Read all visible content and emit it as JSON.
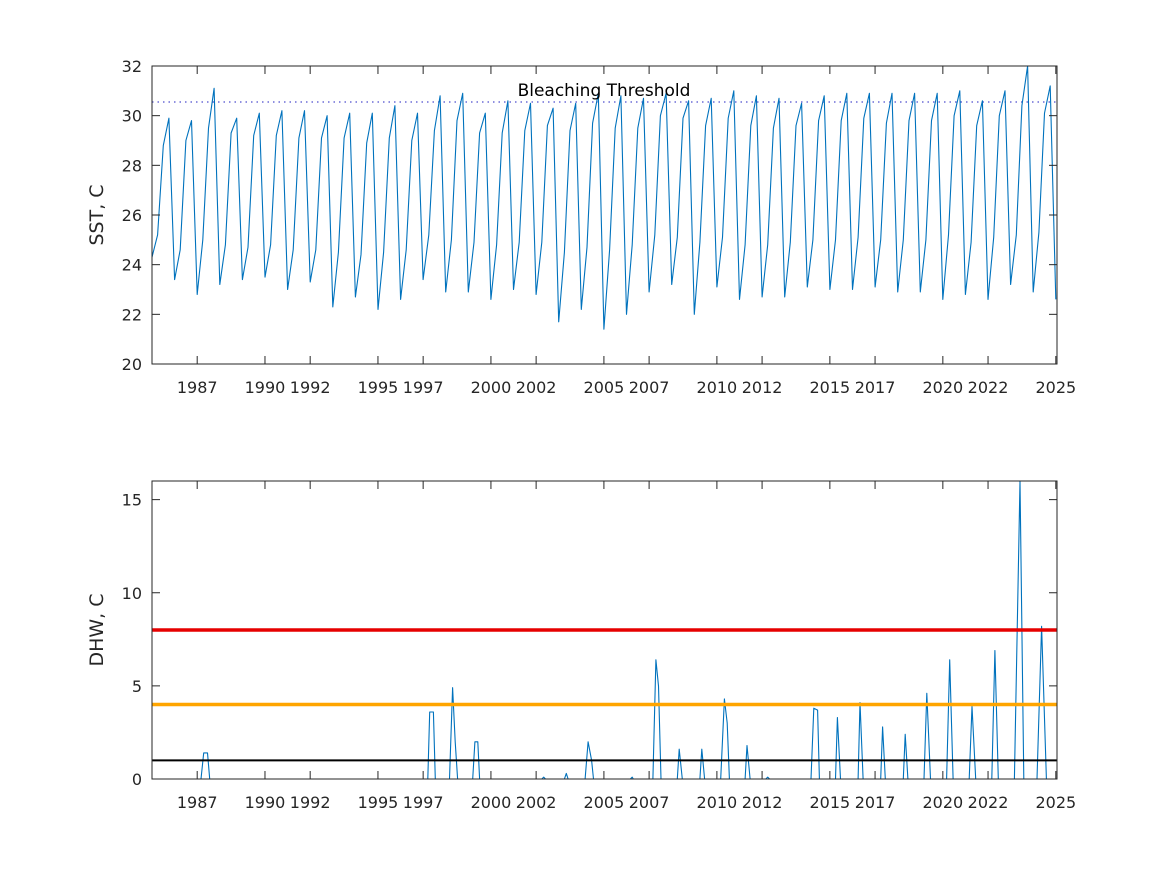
{
  "colors": {
    "series": "#0072BD",
    "threshold_dotted": "#6b6bd6",
    "dhw_red": "#e60000",
    "dhw_orange": "#ffa500",
    "dhw_black": "#000000",
    "axis": "#262626"
  },
  "x_tick_labels": [
    "1987",
    "1990",
    "1992",
    "1995",
    "1997",
    "2000",
    "2002",
    "2005",
    "2007",
    "2010",
    "2012",
    "2015",
    "2017",
    "2020",
    "2022",
    "2025"
  ],
  "chart_data": [
    {
      "type": "line",
      "title": "",
      "xlabel": "",
      "ylabel": "SST, C",
      "xlim": [
        "1985-01-01",
        "2025-01-20"
      ],
      "ylim": [
        20,
        32
      ],
      "yticks": [
        20,
        22,
        24,
        26,
        28,
        30,
        32
      ],
      "grid": false,
      "annotations": [
        {
          "text": "Bleaching Threshold",
          "y": 30.55,
          "style": "dotted"
        }
      ],
      "series": [
        {
          "x": [
            "1985-01",
            "1985-04",
            "1985-07",
            "1985-10",
            "1986-01",
            "1986-04",
            "1986-07",
            "1986-10",
            "1987-01",
            "1987-04",
            "1987-07",
            "1987-10",
            "1988-01",
            "1988-04",
            "1988-07",
            "1988-10",
            "1989-01",
            "1989-04",
            "1989-07",
            "1989-10",
            "1990-01",
            "1990-04",
            "1990-07",
            "1990-10",
            "1991-01",
            "1991-04",
            "1991-07",
            "1991-10",
            "1992-01",
            "1992-04",
            "1992-07",
            "1992-10",
            "1993-01",
            "1993-04",
            "1993-07",
            "1993-10",
            "1994-01",
            "1994-04",
            "1994-07",
            "1994-10",
            "1995-01",
            "1995-04",
            "1995-07",
            "1995-10",
            "1996-01",
            "1996-04",
            "1996-07",
            "1996-10",
            "1997-01",
            "1997-04",
            "1997-07",
            "1997-10",
            "1998-01",
            "1998-04",
            "1998-07",
            "1998-10",
            "1999-01",
            "1999-04",
            "1999-07",
            "1999-10",
            "2000-01",
            "2000-04",
            "2000-07",
            "2000-10",
            "2001-01",
            "2001-04",
            "2001-07",
            "2001-10",
            "2002-01",
            "2002-04",
            "2002-07",
            "2002-10",
            "2003-01",
            "2003-04",
            "2003-07",
            "2003-10",
            "2004-01",
            "2004-04",
            "2004-07",
            "2004-10",
            "2005-01",
            "2005-04",
            "2005-07",
            "2005-10",
            "2006-01",
            "2006-04",
            "2006-07",
            "2006-10",
            "2007-01",
            "2007-04",
            "2007-07",
            "2007-10",
            "2008-01",
            "2008-04",
            "2008-07",
            "2008-10",
            "2009-01",
            "2009-04",
            "2009-07",
            "2009-10",
            "2010-01",
            "2010-04",
            "2010-07",
            "2010-10",
            "2011-01",
            "2011-04",
            "2011-07",
            "2011-10",
            "2012-01",
            "2012-04",
            "2012-07",
            "2012-10",
            "2013-01",
            "2013-04",
            "2013-07",
            "2013-10",
            "2014-01",
            "2014-04",
            "2014-07",
            "2014-10",
            "2015-01",
            "2015-04",
            "2015-07",
            "2015-10",
            "2016-01",
            "2016-04",
            "2016-07",
            "2016-10",
            "2017-01",
            "2017-04",
            "2017-07",
            "2017-10",
            "2018-01",
            "2018-04",
            "2018-07",
            "2018-10",
            "2019-01",
            "2019-04",
            "2019-07",
            "2019-10",
            "2020-01",
            "2020-04",
            "2020-07",
            "2020-10",
            "2021-01",
            "2021-04",
            "2021-07",
            "2021-10",
            "2022-01",
            "2022-04",
            "2022-07",
            "2022-10",
            "2023-01",
            "2023-04",
            "2023-07",
            "2023-10",
            "2024-01",
            "2024-04",
            "2024-07",
            "2024-10",
            "2025-01"
          ],
          "values": [
            24.3,
            25.2,
            28.8,
            29.9,
            23.4,
            24.6,
            29.0,
            29.8,
            22.8,
            25.0,
            29.5,
            31.1,
            23.2,
            24.8,
            29.3,
            29.9,
            23.4,
            24.7,
            29.2,
            30.1,
            23.5,
            24.8,
            29.2,
            30.2,
            23.0,
            24.6,
            29.1,
            30.2,
            23.3,
            24.6,
            29.1,
            30.0,
            22.3,
            24.5,
            29.1,
            30.1,
            22.7,
            24.4,
            28.9,
            30.1,
            22.2,
            24.5,
            29.1,
            30.4,
            22.6,
            24.6,
            29.0,
            30.1,
            23.4,
            25.2,
            29.4,
            30.8,
            22.9,
            25.0,
            29.8,
            30.9,
            22.9,
            24.9,
            29.3,
            30.1,
            22.6,
            24.8,
            29.3,
            30.6,
            23.0,
            24.9,
            29.4,
            30.5,
            22.8,
            24.9,
            29.6,
            30.3,
            21.7,
            24.5,
            29.4,
            30.5,
            22.2,
            24.7,
            29.7,
            30.9,
            21.4,
            24.6,
            29.5,
            30.8,
            22.0,
            24.8,
            29.5,
            30.7,
            22.9,
            25.2,
            30.0,
            30.9,
            23.2,
            25.1,
            29.9,
            30.6,
            22.0,
            24.9,
            29.6,
            30.7,
            23.1,
            25.1,
            29.9,
            31.0,
            22.6,
            24.8,
            29.6,
            30.8,
            22.7,
            24.8,
            29.5,
            30.7,
            22.7,
            24.9,
            29.6,
            30.5,
            23.1,
            25.0,
            29.8,
            30.8,
            23.0,
            25.0,
            29.8,
            30.9,
            23.0,
            25.1,
            29.9,
            30.9,
            23.1,
            25.0,
            29.7,
            30.9,
            22.9,
            25.0,
            29.8,
            30.9,
            22.9,
            25.0,
            29.8,
            30.9,
            22.6,
            25.2,
            30.0,
            31.0,
            22.8,
            24.9,
            29.6,
            30.6,
            22.6,
            25.1,
            30.0,
            31.0,
            23.2,
            25.2,
            30.4,
            32.0,
            22.9,
            25.3,
            30.1,
            31.2,
            22.6
          ]
        }
      ]
    },
    {
      "type": "line",
      "title": "",
      "xlabel": "",
      "ylabel": "DHW, C",
      "xlim": [
        "1985-01-01",
        "2025-01-20"
      ],
      "ylim": [
        0,
        16
      ],
      "yticks": [
        0,
        5,
        10,
        15
      ],
      "grid": false,
      "reference_lines": [
        {
          "y": 8,
          "color": "#e60000"
        },
        {
          "y": 4,
          "color": "#ffa500"
        },
        {
          "y": 1,
          "color": "#000000"
        }
      ],
      "series": [
        {
          "x": [
            "1985-01-01",
            "1987-03-01",
            "1987-04-15",
            "1987-06-15",
            "1987-07-20",
            "1997-03-15",
            "1997-04-15",
            "1997-06-15",
            "1997-07-15",
            "1998-03-01",
            "1998-04-20",
            "1998-06-01",
            "1998-07-10",
            "1999-03-10",
            "1999-04-15",
            "1999-06-01",
            "1999-07-01",
            "2002-04-01",
            "2002-05-01",
            "2002-06-01",
            "2003-04-01",
            "2003-05-01",
            "2003-06-01",
            "2004-03-01",
            "2004-04-20",
            "2004-06-15",
            "2004-07-15",
            "2006-03-01",
            "2006-04-01",
            "2006-04-20",
            "2007-03-01",
            "2007-04-20",
            "2007-06-01",
            "2007-07-10",
            "2008-04-01",
            "2008-05-01",
            "2008-06-20",
            "2009-04-01",
            "2009-05-01",
            "2009-06-15",
            "2010-03-01",
            "2010-05-01",
            "2010-06-15",
            "2010-07-20",
            "2011-04-01",
            "2011-05-01",
            "2011-06-20",
            "2012-03-01",
            "2012-04-01",
            "2012-05-01",
            "2014-03-01",
            "2014-04-15",
            "2014-06-15",
            "2014-07-15",
            "2015-04-01",
            "2015-05-01",
            "2015-06-20",
            "2016-04-01",
            "2016-05-01",
            "2016-06-20",
            "2017-04-01",
            "2017-05-01",
            "2017-06-15",
            "2018-04-01",
            "2018-05-01",
            "2018-06-15",
            "2019-03-01",
            "2019-04-15",
            "2019-06-15",
            "2020-03-01",
            "2020-04-20",
            "2020-06-15",
            "2021-03-01",
            "2021-04-15",
            "2021-06-15",
            "2022-03-01",
            "2022-04-20",
            "2022-06-15",
            "2023-03-01",
            "2023-06-01",
            "2023-08-01",
            "2024-03-01",
            "2024-05-15",
            "2024-08-01",
            "2025-01-20"
          ],
          "values": [
            0,
            0,
            1.4,
            1.4,
            0,
            0,
            3.6,
            3.6,
            0,
            0,
            4.9,
            2.0,
            0,
            0,
            2.0,
            2.0,
            0,
            0,
            0.1,
            0,
            0,
            0.3,
            0,
            0,
            2.0,
            1.0,
            0,
            0,
            0.1,
            0,
            0,
            6.4,
            5.0,
            0,
            0,
            1.6,
            0,
            0,
            1.6,
            0,
            0,
            4.3,
            3.0,
            0,
            0,
            1.8,
            0,
            0,
            0.1,
            0,
            0,
            3.8,
            3.7,
            0,
            0,
            3.3,
            0,
            0,
            4.1,
            0,
            0,
            2.8,
            0,
            0,
            2.4,
            0,
            0,
            4.6,
            0,
            0,
            6.4,
            0,
            0,
            3.9,
            0,
            0,
            6.9,
            0,
            0,
            16.0,
            0,
            0,
            8.2,
            0,
            0
          ]
        }
      ]
    }
  ]
}
